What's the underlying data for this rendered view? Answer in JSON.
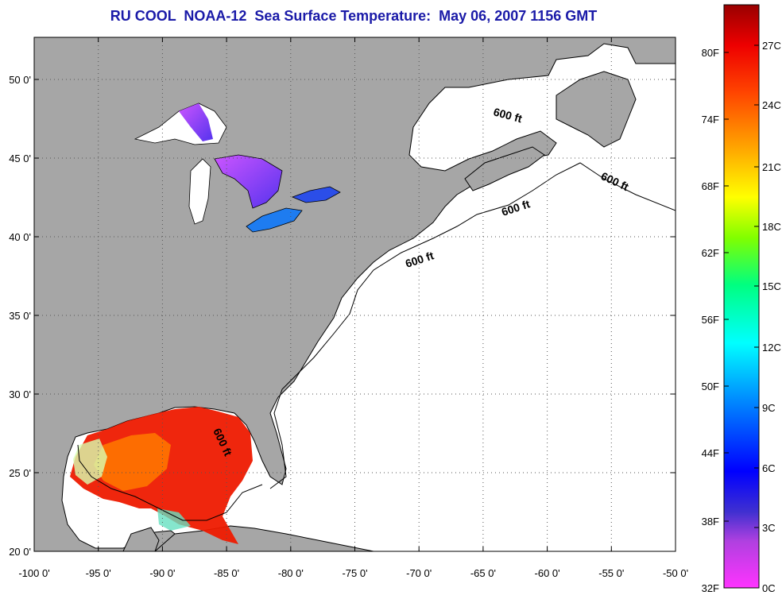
{
  "title": "RU COOL  NOAA-12  Sea Surface Temperature:  May 06, 2007 1156 GMT",
  "map": {
    "lon_ticks": [
      "-100 0'",
      "-95 0'",
      "-90 0'",
      "-85 0'",
      "-80 0'",
      "-75 0'",
      "-70 0'",
      "-65 0'",
      "-60 0'",
      "-55 0'",
      "-50 0'"
    ],
    "lat_ticks": [
      "50 0'",
      "45 0'",
      "40 0'",
      "35 0'",
      "30 0'",
      "25 0'",
      "20 0'"
    ],
    "contour_labels": [
      "600 ft",
      "600 ft",
      "600 ft",
      "600 ft",
      "600 ft"
    ],
    "colors": {
      "land": "#a6a6a6",
      "ocean": "#ffffff",
      "grid": "#555555"
    }
  },
  "colorbar": {
    "fahrenheit_labels": [
      "80F",
      "74F",
      "68F",
      "62F",
      "56F",
      "50F",
      "44F",
      "38F",
      "32F"
    ],
    "celsius_labels": [
      "27C",
      "24C",
      "21C",
      "18C",
      "15C",
      "12C",
      "9C",
      "6C",
      "3C",
      "0C"
    ],
    "colors": [
      "#ff33ff",
      "#8a2be2",
      "#0000ff",
      "#00aaff",
      "#00ffff",
      "#00ff66",
      "#aaff00",
      "#ffff00",
      "#ffaa00",
      "#ff5500",
      "#ee0000",
      "#990000"
    ]
  }
}
